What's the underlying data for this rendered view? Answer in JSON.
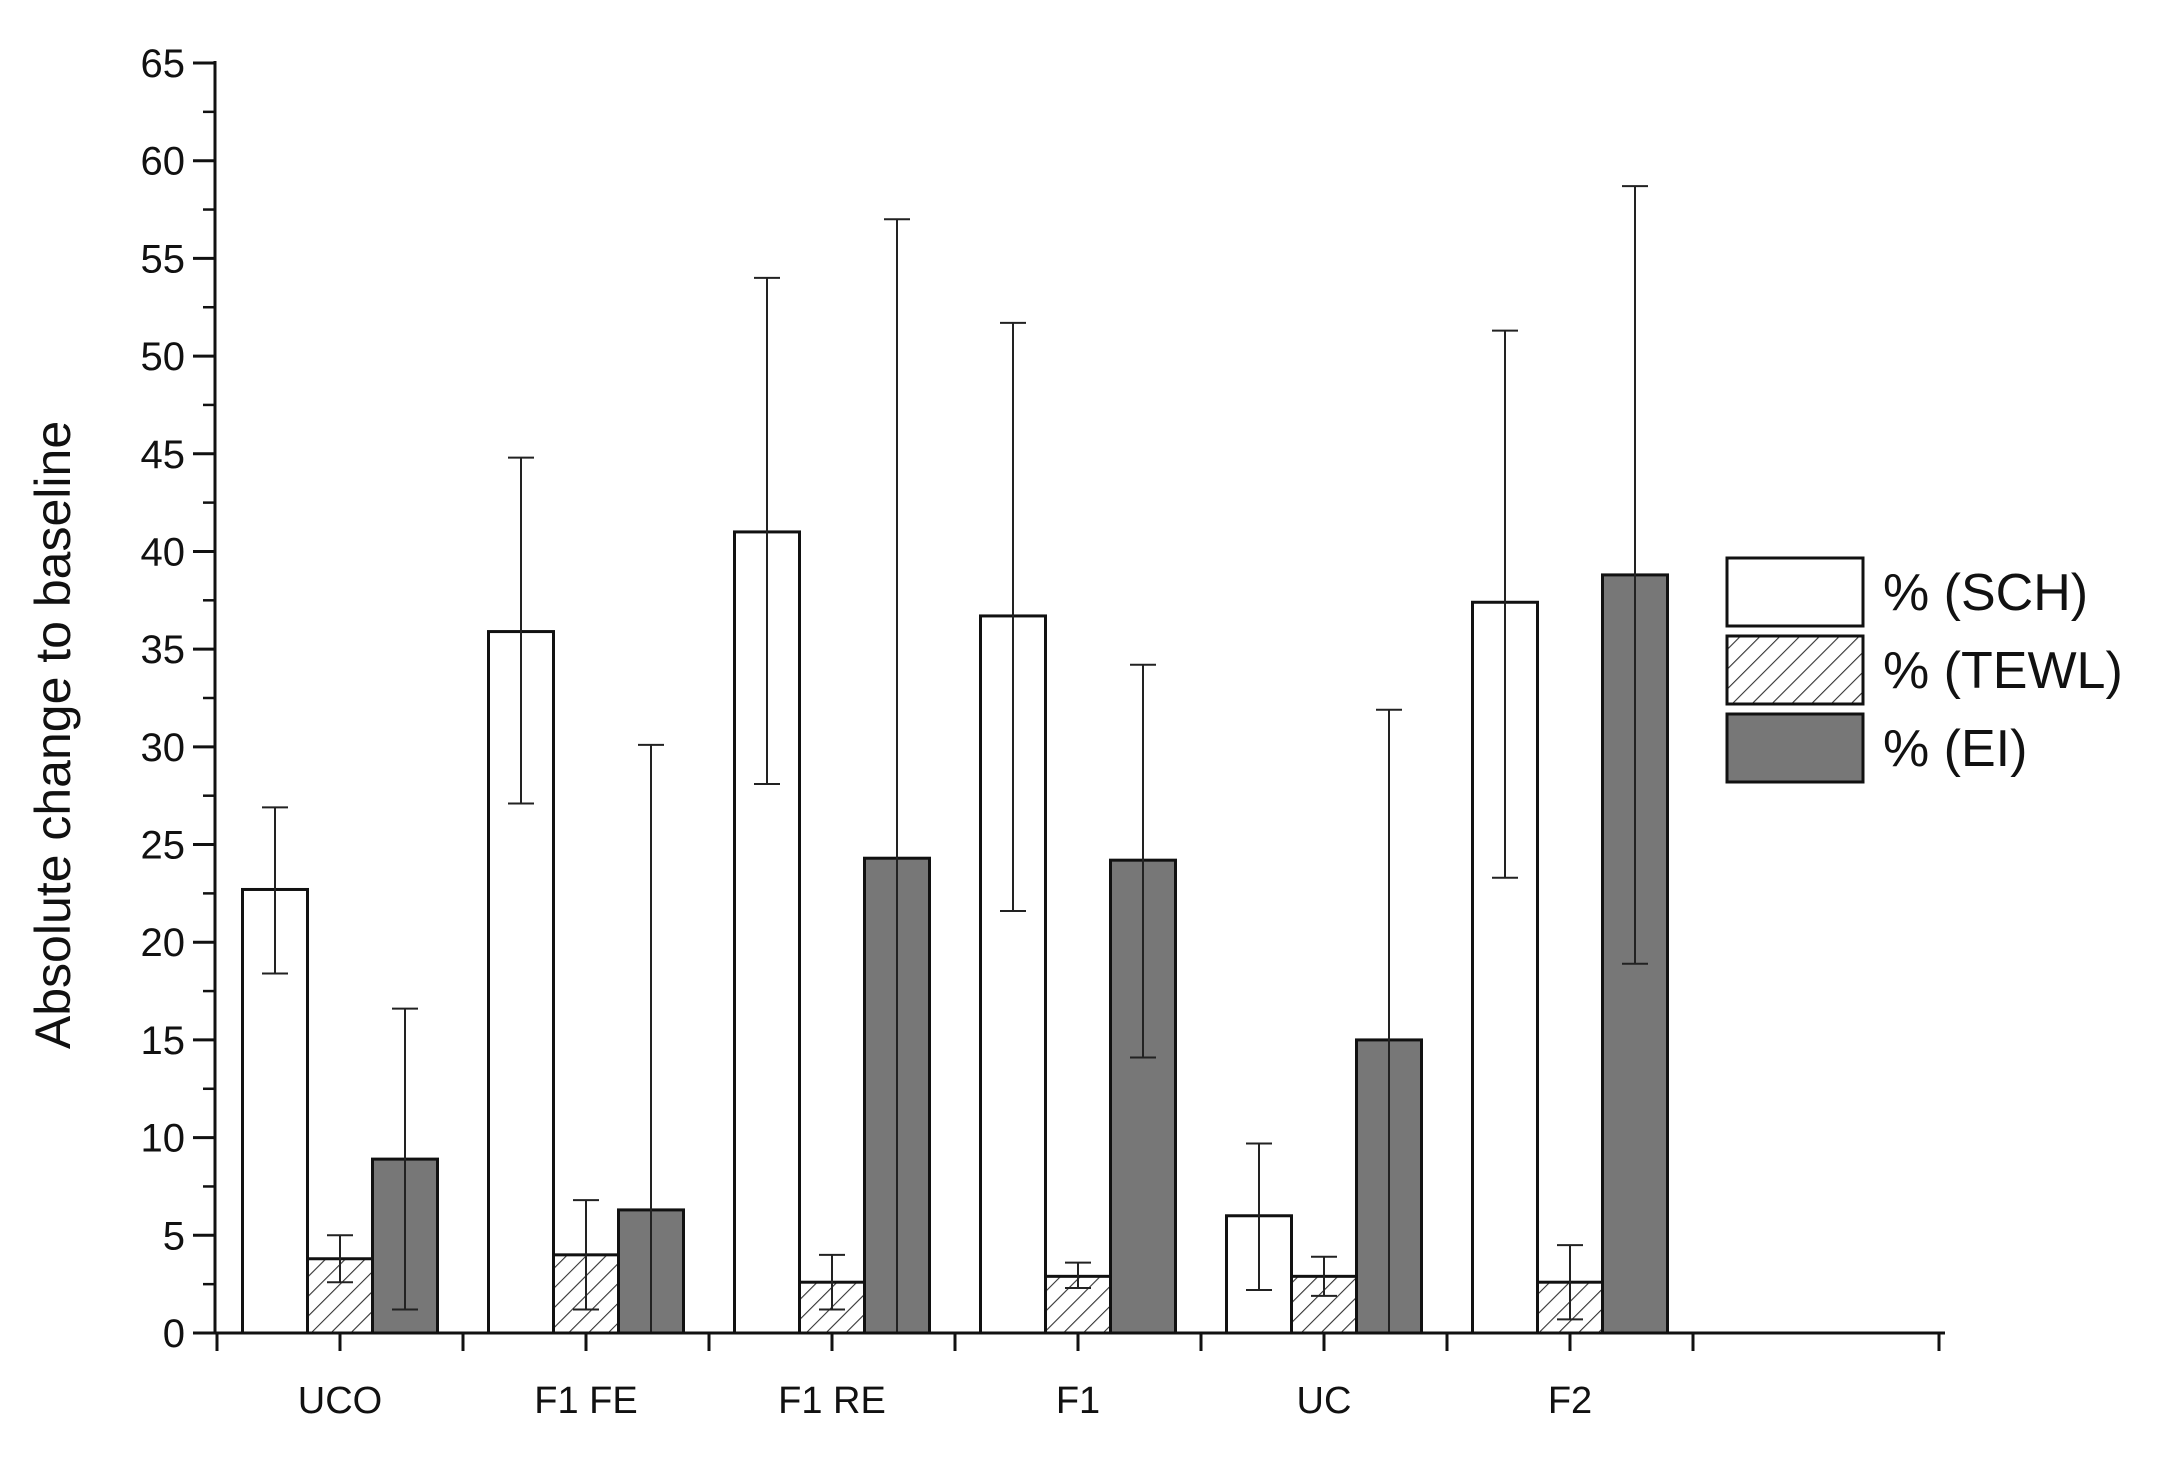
{
  "chart_data": {
    "type": "bar",
    "title": "",
    "xlabel": "",
    "ylabel": "Absolute change to baseline",
    "ylim": [
      0,
      65
    ],
    "yticks": [
      0,
      5,
      10,
      15,
      20,
      25,
      30,
      35,
      40,
      45,
      50,
      55,
      60,
      65
    ],
    "y_minor_step": 2.5,
    "categories": [
      "UCO",
      "F1 FE",
      "F1 RE",
      "F1",
      "UC",
      "F2"
    ],
    "x_extra_slots": 1,
    "grid": false,
    "legend_position": "right",
    "series": [
      {
        "name": "% (SCH)",
        "fill": "white",
        "values": [
          22.7,
          35.9,
          41.0,
          36.7,
          6.0,
          37.4
        ],
        "error_low": [
          18.4,
          27.1,
          28.1,
          21.6,
          2.2,
          23.3
        ],
        "error_high": [
          26.9,
          44.8,
          54.0,
          51.7,
          9.7,
          51.3
        ]
      },
      {
        "name": "% (TEWL)",
        "fill": "hatched",
        "values": [
          3.8,
          4.0,
          2.6,
          2.9,
          2.9,
          2.6
        ],
        "error_low": [
          2.6,
          1.2,
          1.2,
          2.3,
          1.9,
          0.7
        ],
        "error_high": [
          5.0,
          6.8,
          4.0,
          3.6,
          3.9,
          4.5
        ]
      },
      {
        "name": "% (EI)",
        "fill": "gray",
        "values": [
          8.9,
          6.3,
          24.3,
          24.2,
          15.0,
          38.8
        ],
        "error_low": [
          1.2,
          0,
          0,
          14.1,
          0,
          18.9
        ],
        "error_high": [
          16.6,
          30.1,
          57.0,
          34.2,
          31.9,
          58.7
        ]
      }
    ],
    "colors": {
      "bar_outline": "#111111",
      "sch_fill": "#ffffff",
      "tewl_fill": "#ffffff",
      "tewl_hatch": "#333333",
      "ei_fill": "#777777",
      "axis": "#111111",
      "error_bar": "#222222"
    }
  }
}
